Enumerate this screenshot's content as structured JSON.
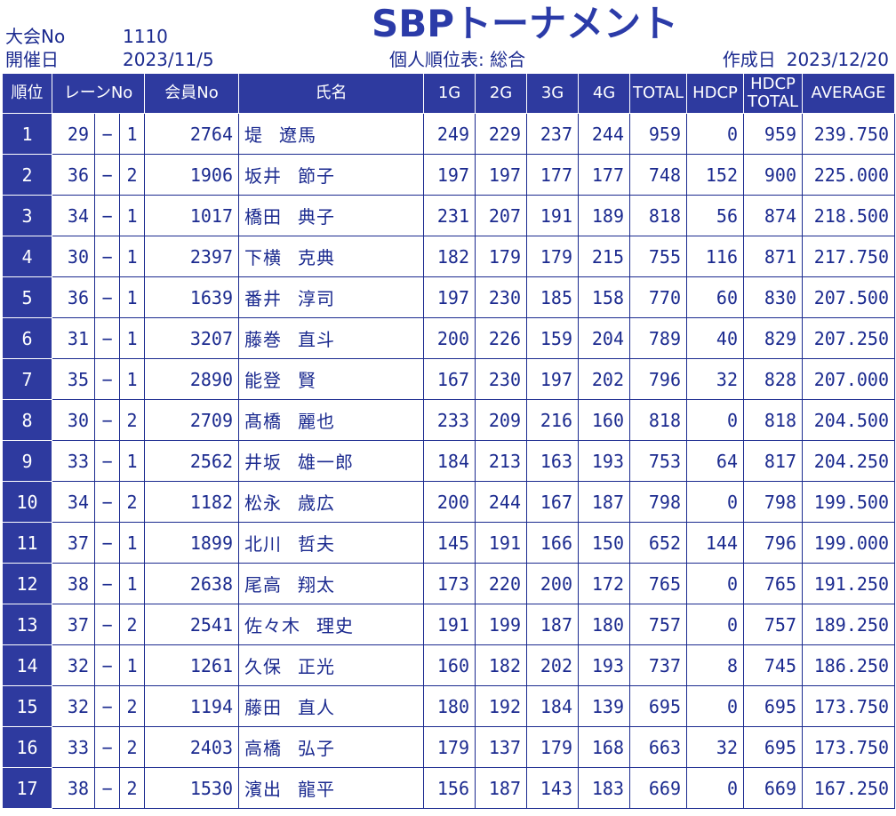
{
  "header": {
    "tournament_no_label": "大会No",
    "tournament_no_value": "1110",
    "date_label": "開催日",
    "date_value": "2023/11/5",
    "title": "SBPトーナメント",
    "sheet_name": "個人順位表: 総合",
    "created_label": "作成日",
    "created_value": "2023/12/20"
  },
  "columns": {
    "rank": "順位",
    "lane": "レーンNo",
    "member_no": "会員No",
    "name": "氏名",
    "g1": "1G",
    "g2": "2G",
    "g3": "3G",
    "g4": "4G",
    "total": "TOTAL",
    "hdcp": "HDCP",
    "hdcp_total_1": "HDCP",
    "hdcp_total_2": "TOTAL",
    "average": "AVERAGE"
  },
  "colors": {
    "header_bg": "#2e3a9f",
    "text": "#1b2a8f"
  },
  "rows": [
    {
      "rank": "1",
      "lane": "29",
      "sep": "−",
      "box": "1",
      "member": "2764",
      "family": "堤",
      "given": "遼馬",
      "g1": "249",
      "g2": "229",
      "g3": "237",
      "g4": "244",
      "total": "959",
      "hdcp": "0",
      "hdcp_total": "959",
      "avg": "239.750"
    },
    {
      "rank": "2",
      "lane": "36",
      "sep": "−",
      "box": "2",
      "member": "1906",
      "family": "坂井",
      "given": "節子",
      "g1": "197",
      "g2": "197",
      "g3": "177",
      "g4": "177",
      "total": "748",
      "hdcp": "152",
      "hdcp_total": "900",
      "avg": "225.000"
    },
    {
      "rank": "3",
      "lane": "34",
      "sep": "−",
      "box": "1",
      "member": "1017",
      "family": "橋田",
      "given": "典子",
      "g1": "231",
      "g2": "207",
      "g3": "191",
      "g4": "189",
      "total": "818",
      "hdcp": "56",
      "hdcp_total": "874",
      "avg": "218.500"
    },
    {
      "rank": "4",
      "lane": "30",
      "sep": "−",
      "box": "1",
      "member": "2397",
      "family": "下横",
      "given": "克典",
      "g1": "182",
      "g2": "179",
      "g3": "179",
      "g4": "215",
      "total": "755",
      "hdcp": "116",
      "hdcp_total": "871",
      "avg": "217.750"
    },
    {
      "rank": "5",
      "lane": "36",
      "sep": "−",
      "box": "1",
      "member": "1639",
      "family": "番井",
      "given": "淳司",
      "g1": "197",
      "g2": "230",
      "g3": "185",
      "g4": "158",
      "total": "770",
      "hdcp": "60",
      "hdcp_total": "830",
      "avg": "207.500"
    },
    {
      "rank": "6",
      "lane": "31",
      "sep": "−",
      "box": "1",
      "member": "3207",
      "family": "藤巻",
      "given": "直斗",
      "g1": "200",
      "g2": "226",
      "g3": "159",
      "g4": "204",
      "total": "789",
      "hdcp": "40",
      "hdcp_total": "829",
      "avg": "207.250"
    },
    {
      "rank": "7",
      "lane": "35",
      "sep": "−",
      "box": "1",
      "member": "2890",
      "family": "能登",
      "given": "賢",
      "g1": "167",
      "g2": "230",
      "g3": "197",
      "g4": "202",
      "total": "796",
      "hdcp": "32",
      "hdcp_total": "828",
      "avg": "207.000"
    },
    {
      "rank": "8",
      "lane": "30",
      "sep": "−",
      "box": "2",
      "member": "2709",
      "family": "髙橋",
      "given": "麗也",
      "g1": "233",
      "g2": "209",
      "g3": "216",
      "g4": "160",
      "total": "818",
      "hdcp": "0",
      "hdcp_total": "818",
      "avg": "204.500"
    },
    {
      "rank": "9",
      "lane": "33",
      "sep": "−",
      "box": "1",
      "member": "2562",
      "family": "井坂",
      "given": "雄一郎",
      "g1": "184",
      "g2": "213",
      "g3": "163",
      "g4": "193",
      "total": "753",
      "hdcp": "64",
      "hdcp_total": "817",
      "avg": "204.250"
    },
    {
      "rank": "10",
      "lane": "34",
      "sep": "−",
      "box": "2",
      "member": "1182",
      "family": "松永",
      "given": "歳広",
      "g1": "200",
      "g2": "244",
      "g3": "167",
      "g4": "187",
      "total": "798",
      "hdcp": "0",
      "hdcp_total": "798",
      "avg": "199.500"
    },
    {
      "rank": "11",
      "lane": "37",
      "sep": "−",
      "box": "1",
      "member": "1899",
      "family": "北川",
      "given": "哲夫",
      "g1": "145",
      "g2": "191",
      "g3": "166",
      "g4": "150",
      "total": "652",
      "hdcp": "144",
      "hdcp_total": "796",
      "avg": "199.000"
    },
    {
      "rank": "12",
      "lane": "38",
      "sep": "−",
      "box": "1",
      "member": "2638",
      "family": "尾高",
      "given": "翔太",
      "g1": "173",
      "g2": "220",
      "g3": "200",
      "g4": "172",
      "total": "765",
      "hdcp": "0",
      "hdcp_total": "765",
      "avg": "191.250"
    },
    {
      "rank": "13",
      "lane": "37",
      "sep": "−",
      "box": "2",
      "member": "2541",
      "family": "佐々木",
      "given": "理史",
      "g1": "191",
      "g2": "199",
      "g3": "187",
      "g4": "180",
      "total": "757",
      "hdcp": "0",
      "hdcp_total": "757",
      "avg": "189.250"
    },
    {
      "rank": "14",
      "lane": "32",
      "sep": "−",
      "box": "1",
      "member": "1261",
      "family": "久保",
      "given": "正光",
      "g1": "160",
      "g2": "182",
      "g3": "202",
      "g4": "193",
      "total": "737",
      "hdcp": "8",
      "hdcp_total": "745",
      "avg": "186.250"
    },
    {
      "rank": "15",
      "lane": "32",
      "sep": "−",
      "box": "2",
      "member": "1194",
      "family": "藤田",
      "given": "直人",
      "g1": "180",
      "g2": "192",
      "g3": "184",
      "g4": "139",
      "total": "695",
      "hdcp": "0",
      "hdcp_total": "695",
      "avg": "173.750"
    },
    {
      "rank": "16",
      "lane": "33",
      "sep": "−",
      "box": "2",
      "member": "2403",
      "family": "高橋",
      "given": "弘子",
      "g1": "179",
      "g2": "137",
      "g3": "179",
      "g4": "168",
      "total": "663",
      "hdcp": "32",
      "hdcp_total": "695",
      "avg": "173.750"
    },
    {
      "rank": "17",
      "lane": "38",
      "sep": "−",
      "box": "2",
      "member": "1530",
      "family": "濱出",
      "given": "龍平",
      "g1": "156",
      "g2": "187",
      "g3": "143",
      "g4": "183",
      "total": "669",
      "hdcp": "0",
      "hdcp_total": "669",
      "avg": "167.250"
    }
  ]
}
